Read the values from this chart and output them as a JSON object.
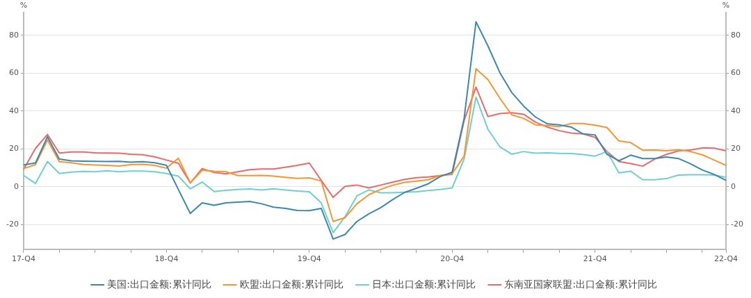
{
  "chart_data": {
    "type": "line",
    "ylabel": "%",
    "y2label": "%",
    "categories": [
      "17-Q4",
      null,
      null,
      null,
      null,
      null,
      null,
      null,
      null,
      null,
      null,
      null,
      "18-Q4",
      null,
      null,
      null,
      null,
      null,
      null,
      null,
      null,
      null,
      null,
      null,
      "19-Q4",
      null,
      null,
      null,
      null,
      null,
      null,
      null,
      null,
      null,
      null,
      null,
      "20-Q4",
      null,
      null,
      null,
      null,
      null,
      null,
      null,
      null,
      null,
      null,
      null,
      "21-Q4",
      null,
      null,
      null,
      null,
      null,
      null,
      null,
      null,
      null,
      null,
      "22-Q4"
    ],
    "series": [
      {
        "name": "美国:出口金额:累计同比",
        "color": "#3a87b0",
        "values": [
          11.5,
          12.6,
          26.4,
          14.6,
          13.7,
          13.5,
          13.4,
          13.3,
          13.4,
          13.0,
          13.2,
          12.7,
          11.3,
          -1.5,
          -14.1,
          -8.5,
          -9.8,
          -8.5,
          -8.1,
          -7.8,
          -9.0,
          -10.8,
          -11.4,
          -12.5,
          -12.6,
          -11.4,
          -27.6,
          -25.2,
          -18.3,
          -14.3,
          -11.0,
          -6.8,
          -3.0,
          -0.8,
          1.6,
          5.4,
          7.7,
          36,
          87.1,
          74.4,
          60.3,
          49.8,
          42.6,
          36.8,
          33.2,
          32.7,
          31.5,
          27.9,
          27.4,
          17.1,
          13.7,
          16.7,
          14.9,
          14.9,
          15.7,
          14.9,
          12.2,
          8.9,
          6.5,
          3.4
        ]
      },
      {
        "name": "欧盟:出口金额:累计同比",
        "color": "#f7952f",
        "values": [
          9.6,
          11.7,
          24.7,
          13.2,
          12.7,
          11.8,
          11.5,
          11.3,
          10.9,
          11.7,
          11.9,
          11.3,
          9.8,
          15.1,
          2.0,
          8.7,
          8.2,
          7.9,
          5.9,
          5.9,
          6.0,
          5.6,
          5.0,
          4.4,
          4.7,
          3.0,
          -18.3,
          -16.3,
          -9.0,
          -4.2,
          -1.4,
          0.8,
          2.3,
          3.0,
          3.7,
          5.9,
          7.0,
          16.1,
          62.3,
          56.6,
          46.8,
          38.0,
          36.1,
          32.7,
          32.3,
          31.8,
          33.4,
          33.4,
          32.5,
          31.3,
          24.2,
          23.3,
          19.3,
          19.4,
          19.0,
          19.6,
          18.6,
          16.9,
          14.1,
          11.3
        ]
      },
      {
        "name": "日本:出口金额:累计同比",
        "color": "#6fcfcf",
        "values": [
          6.0,
          1.7,
          13.3,
          7.0,
          7.7,
          8.1,
          7.9,
          8.5,
          7.9,
          8.3,
          8.3,
          7.9,
          7.0,
          5.6,
          -1.1,
          2.5,
          -2.5,
          -1.9,
          -1.4,
          -1.2,
          -1.7,
          -1.1,
          -1.7,
          -2.3,
          -2.6,
          -8.5,
          -24.2,
          -15.8,
          -4.8,
          -1.7,
          -3.2,
          -3.2,
          -2.9,
          -2.6,
          -2.0,
          -1.4,
          -0.6,
          14.6,
          47.3,
          30.4,
          21.1,
          17.2,
          18.6,
          17.7,
          17.9,
          17.6,
          17.5,
          17.0,
          16.2,
          18.6,
          7.4,
          8.2,
          3.7,
          3.7,
          4.3,
          6.2,
          6.4,
          6.4,
          6.2,
          5.0
        ]
      },
      {
        "name": "东南亚国家联盟:出口金额:累计同比",
        "color": "#e86a6a",
        "values": [
          9.2,
          20.3,
          27.6,
          17.8,
          18.4,
          18.4,
          17.9,
          17.8,
          17.7,
          17.2,
          16.9,
          15.8,
          14.1,
          12.4,
          2.0,
          9.6,
          7.5,
          6.8,
          7.9,
          9.0,
          9.4,
          9.4,
          10.3,
          11.3,
          12.5,
          3.4,
          -5.6,
          0.2,
          0.9,
          -0.6,
          0.9,
          2.4,
          3.9,
          4.8,
          5.2,
          5.9,
          6.5,
          34.9,
          52.6,
          37.1,
          38.6,
          39.1,
          38.3,
          34.1,
          31.5,
          29.6,
          28.4,
          27.9,
          26.1,
          18.6,
          13.3,
          12.2,
          10.9,
          14.6,
          17.1,
          18.9,
          19.4,
          20.5,
          20.4,
          19.0
        ]
      }
    ],
    "ylim": [
      -33,
      92
    ],
    "yticks": [
      -20,
      0,
      20,
      40,
      60,
      80
    ],
    "y2lim": [
      -33,
      92
    ],
    "y2ticks": [
      -20,
      0,
      20,
      40,
      60,
      80
    ],
    "grid": "y",
    "legend": "bottom",
    "marker": "none",
    "line_style": "solid"
  }
}
